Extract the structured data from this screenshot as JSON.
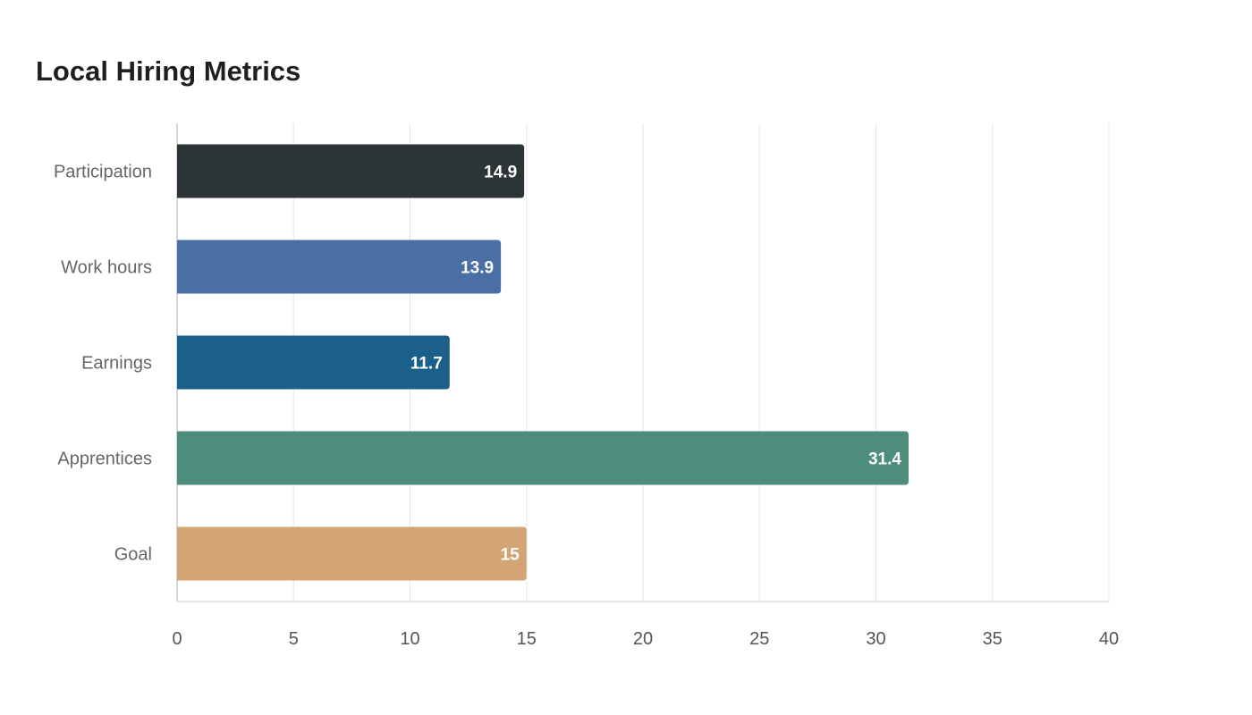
{
  "chart_data": {
    "type": "bar",
    "orientation": "horizontal",
    "title": "Local Hiring Metrics",
    "categories": [
      "Participation",
      "Work hours",
      "Earnings",
      "Apprentices",
      "Goal"
    ],
    "values": [
      14.9,
      13.9,
      11.7,
      31.4,
      15.0
    ],
    "colors": [
      "#2d3436",
      "#4a6fa5",
      "#1a608a",
      "#4e8c7c",
      "#d4a574"
    ],
    "xlim": [
      0,
      40
    ],
    "xticks": [
      0,
      5,
      10,
      15,
      20,
      25,
      30,
      35,
      40
    ],
    "xlabel": "",
    "ylabel": "",
    "grid": true,
    "legend": "none"
  }
}
